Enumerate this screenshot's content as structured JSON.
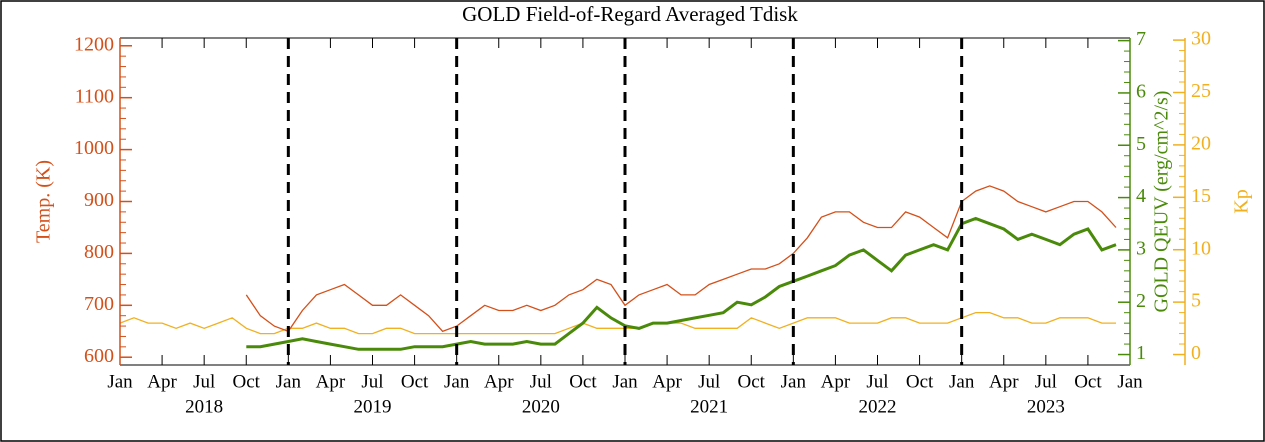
{
  "chart_data": {
    "type": "line",
    "title": "GOLD Field-of-Regard Averaged Tdisk",
    "ylabel": "Temp. (K)",
    "y2label": "GOLD QEUV (erg/cm^2/s)",
    "y3label": "Kp",
    "xlim": [
      "2018-01",
      "2024-01"
    ],
    "xticks": [
      {
        "value": "2018-01",
        "label": "Jan"
      },
      {
        "value": "2018-04",
        "label": "Apr"
      },
      {
        "value": "2018-07",
        "label": "Jul"
      },
      {
        "value": "2018-10",
        "label": "Oct"
      },
      {
        "value": "2019-01",
        "label": "Jan"
      },
      {
        "value": "2019-04",
        "label": "Apr"
      },
      {
        "value": "2019-07",
        "label": "Jul"
      },
      {
        "value": "2019-10",
        "label": "Oct"
      },
      {
        "value": "2020-01",
        "label": "Jan"
      },
      {
        "value": "2020-04",
        "label": "Apr"
      },
      {
        "value": "2020-07",
        "label": "Jul"
      },
      {
        "value": "2020-10",
        "label": "Oct"
      },
      {
        "value": "2021-01",
        "label": "Jan"
      },
      {
        "value": "2021-04",
        "label": "Apr"
      },
      {
        "value": "2021-07",
        "label": "Jul"
      },
      {
        "value": "2021-10",
        "label": "Oct"
      },
      {
        "value": "2022-01",
        "label": "Jan"
      },
      {
        "value": "2022-04",
        "label": "Apr"
      },
      {
        "value": "2022-07",
        "label": "Jul"
      },
      {
        "value": "2022-10",
        "label": "Oct"
      },
      {
        "value": "2023-01",
        "label": "Jan"
      },
      {
        "value": "2023-04",
        "label": "Apr"
      },
      {
        "value": "2023-07",
        "label": "Jul"
      },
      {
        "value": "2023-10",
        "label": "Oct"
      },
      {
        "value": "2024-01",
        "label": "Jan"
      }
    ],
    "x_year_labels": [
      "2018",
      "2019",
      "2020",
      "2021",
      "2022",
      "2023"
    ],
    "vlines": [
      "2019-01",
      "2020-01",
      "2021-01",
      "2022-01",
      "2023-01"
    ],
    "ylim": [
      585,
      1215
    ],
    "yticks": [
      600,
      700,
      800,
      900,
      1000,
      1100,
      1200
    ],
    "y2lim": [
      0.8,
      7.05
    ],
    "y2ticks": [
      1,
      2,
      3,
      4,
      5,
      6,
      7
    ],
    "y3lim": [
      -1,
      30.2
    ],
    "y3ticks": [
      0,
      5,
      10,
      15,
      20,
      25,
      30
    ],
    "series": [
      {
        "name": "Temp. (K)",
        "color": "#d4501a",
        "axis": "y",
        "x": [
          "2018-10",
          "2018-11",
          "2018-12",
          "2019-01",
          "2019-02",
          "2019-03",
          "2019-04",
          "2019-05",
          "2019-06",
          "2019-07",
          "2019-08",
          "2019-09",
          "2019-10",
          "2019-11",
          "2019-12",
          "2020-01",
          "2020-02",
          "2020-03",
          "2020-04",
          "2020-05",
          "2020-06",
          "2020-07",
          "2020-08",
          "2020-09",
          "2020-10",
          "2020-11",
          "2020-12",
          "2021-01",
          "2021-02",
          "2021-03",
          "2021-04",
          "2021-05",
          "2021-06",
          "2021-07",
          "2021-08",
          "2021-09",
          "2021-10",
          "2021-11",
          "2021-12",
          "2022-01",
          "2022-02",
          "2022-03",
          "2022-04",
          "2022-05",
          "2022-06",
          "2022-07",
          "2022-08",
          "2022-09",
          "2022-10",
          "2022-11",
          "2022-12",
          "2023-01",
          "2023-02",
          "2023-03",
          "2023-04",
          "2023-05",
          "2023-06",
          "2023-07",
          "2023-08",
          "2023-09",
          "2023-10",
          "2023-11",
          "2023-12"
        ],
        "values": [
          720,
          680,
          660,
          650,
          690,
          720,
          730,
          740,
          720,
          700,
          700,
          720,
          700,
          680,
          650,
          660,
          680,
          700,
          690,
          690,
          700,
          690,
          700,
          720,
          730,
          750,
          740,
          700,
          720,
          730,
          740,
          720,
          720,
          740,
          750,
          760,
          770,
          770,
          780,
          800,
          830,
          870,
          880,
          880,
          860,
          850,
          850,
          880,
          870,
          850,
          830,
          900,
          920,
          930,
          920,
          900,
          890,
          880,
          890,
          900,
          900,
          880,
          850
        ]
      },
      {
        "name": "GOLD QEUV (erg/cm^2/s)",
        "color": "#4a8a0a",
        "axis": "y2",
        "x": [
          "2018-10",
          "2018-11",
          "2018-12",
          "2019-01",
          "2019-02",
          "2019-03",
          "2019-04",
          "2019-05",
          "2019-06",
          "2019-07",
          "2019-08",
          "2019-09",
          "2019-10",
          "2019-11",
          "2019-12",
          "2020-01",
          "2020-02",
          "2020-03",
          "2020-04",
          "2020-05",
          "2020-06",
          "2020-07",
          "2020-08",
          "2020-09",
          "2020-10",
          "2020-11",
          "2020-12",
          "2021-01",
          "2021-02",
          "2021-03",
          "2021-04",
          "2021-05",
          "2021-06",
          "2021-07",
          "2021-08",
          "2021-09",
          "2021-10",
          "2021-11",
          "2021-12",
          "2022-01",
          "2022-02",
          "2022-03",
          "2022-04",
          "2022-05",
          "2022-06",
          "2022-07",
          "2022-08",
          "2022-09",
          "2022-10",
          "2022-11",
          "2022-12",
          "2023-01",
          "2023-02",
          "2023-03",
          "2023-04",
          "2023-05",
          "2023-06",
          "2023-07",
          "2023-08",
          "2023-09",
          "2023-10",
          "2023-11",
          "2023-12"
        ],
        "values": [
          1.15,
          1.15,
          1.2,
          1.25,
          1.3,
          1.25,
          1.2,
          1.15,
          1.1,
          1.1,
          1.1,
          1.1,
          1.15,
          1.15,
          1.15,
          1.2,
          1.25,
          1.2,
          1.2,
          1.2,
          1.25,
          1.2,
          1.2,
          1.4,
          1.6,
          1.9,
          1.7,
          1.55,
          1.5,
          1.6,
          1.6,
          1.65,
          1.7,
          1.75,
          1.8,
          2.0,
          1.95,
          2.1,
          2.3,
          2.4,
          2.5,
          2.6,
          2.7,
          2.9,
          3.0,
          2.8,
          2.6,
          2.9,
          3.0,
          3.1,
          3.0,
          3.5,
          3.6,
          3.5,
          3.4,
          3.2,
          3.3,
          3.2,
          3.1,
          3.3,
          3.4,
          3.0,
          3.1
        ]
      },
      {
        "name": "Kp",
        "color": "#f0b020",
        "axis": "y3",
        "x": [
          "2018-01",
          "2018-02",
          "2018-03",
          "2018-04",
          "2018-05",
          "2018-06",
          "2018-07",
          "2018-08",
          "2018-09",
          "2018-10",
          "2018-11",
          "2018-12",
          "2019-01",
          "2019-02",
          "2019-03",
          "2019-04",
          "2019-05",
          "2019-06",
          "2019-07",
          "2019-08",
          "2019-09",
          "2019-10",
          "2019-11",
          "2019-12",
          "2020-01",
          "2020-02",
          "2020-03",
          "2020-04",
          "2020-05",
          "2020-06",
          "2020-07",
          "2020-08",
          "2020-09",
          "2020-10",
          "2020-11",
          "2020-12",
          "2021-01",
          "2021-02",
          "2021-03",
          "2021-04",
          "2021-05",
          "2021-06",
          "2021-07",
          "2021-08",
          "2021-09",
          "2021-10",
          "2021-11",
          "2021-12",
          "2022-01",
          "2022-02",
          "2022-03",
          "2022-04",
          "2022-05",
          "2022-06",
          "2022-07",
          "2022-08",
          "2022-09",
          "2022-10",
          "2022-11",
          "2022-12",
          "2023-01",
          "2023-02",
          "2023-03",
          "2023-04",
          "2023-05",
          "2023-06",
          "2023-07",
          "2023-08",
          "2023-09",
          "2023-10",
          "2023-11",
          "2023-12"
        ],
        "values": [
          3,
          3.5,
          3,
          3,
          2.5,
          3,
          2.5,
          3,
          3.5,
          2.5,
          2,
          2,
          2.5,
          2.5,
          3,
          2.5,
          2.5,
          2,
          2,
          2.5,
          2.5,
          2,
          2,
          2,
          2,
          2,
          2,
          2,
          2,
          2,
          2,
          2,
          2.5,
          3,
          2.5,
          2.5,
          2.5,
          2.5,
          3,
          3,
          3,
          2.5,
          2.5,
          2.5,
          2.5,
          3.5,
          3,
          2.5,
          3,
          3.5,
          3.5,
          3.5,
          3,
          3,
          3,
          3.5,
          3.5,
          3,
          3,
          3,
          3.5,
          4,
          4,
          3.5,
          3.5,
          3,
          3,
          3.5,
          3.5,
          3.5,
          3,
          3
        ]
      }
    ]
  }
}
